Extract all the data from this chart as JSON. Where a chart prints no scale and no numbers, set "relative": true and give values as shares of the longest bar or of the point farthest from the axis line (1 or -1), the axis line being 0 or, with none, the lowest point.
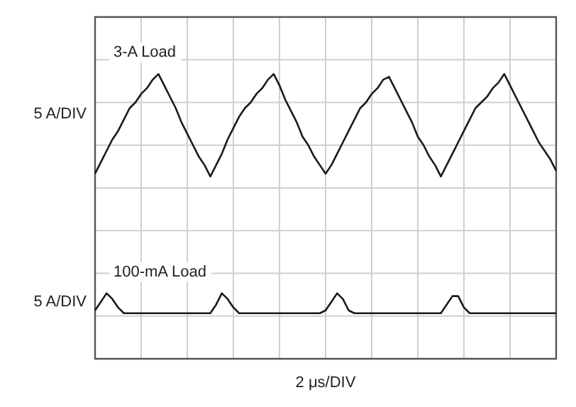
{
  "chart_data": {
    "type": "line",
    "relative": true,
    "xlabel": "2 μs/DIV",
    "annotations": [
      "5 A/DIV",
      "5 A/DIV"
    ],
    "grid": true,
    "legend": false,
    "marker": "none",
    "line_style": "solid",
    "categories": [
      null,
      null,
      null,
      null,
      null,
      null,
      null,
      null,
      null,
      null,
      null,
      null,
      null,
      null,
      null,
      null,
      null,
      null,
      null,
      null,
      null,
      null,
      null,
      null,
      null,
      null,
      null,
      null,
      null,
      null,
      null,
      null,
      null,
      null,
      null,
      null,
      null,
      null,
      null,
      null,
      null,
      null,
      null,
      null,
      null,
      null,
      null,
      null,
      null,
      null,
      null,
      null,
      null,
      null,
      null,
      null,
      null,
      null,
      null,
      null,
      null,
      null,
      null,
      null,
      null,
      null,
      null,
      null,
      null,
      null,
      null,
      null,
      null,
      null,
      null,
      null,
      null,
      null,
      null,
      null,
      null
    ],
    "series": [
      {
        "name": "3-A Load",
        "color": "#1a1a1a",
        "values": [
          0.65,
          0.69,
          0.73,
          0.77,
          0.8,
          0.84,
          0.88,
          0.9,
          0.93,
          0.95,
          0.98,
          1.0,
          0.96,
          0.92,
          0.88,
          0.83,
          0.79,
          0.75,
          0.71,
          0.68,
          0.64,
          0.68,
          0.72,
          0.77,
          0.81,
          0.85,
          0.88,
          0.9,
          0.93,
          0.95,
          0.98,
          1.0,
          0.96,
          0.91,
          0.87,
          0.83,
          0.78,
          0.75,
          0.71,
          0.68,
          0.65,
          0.68,
          0.72,
          0.76,
          0.8,
          0.84,
          0.88,
          0.9,
          0.93,
          0.95,
          0.98,
          0.99,
          0.95,
          0.91,
          0.87,
          0.83,
          0.78,
          0.75,
          0.71,
          0.68,
          0.64,
          0.68,
          0.72,
          0.76,
          0.8,
          0.84,
          0.88,
          0.9,
          0.92,
          0.95,
          0.97,
          1.0,
          0.96,
          0.92,
          0.88,
          0.84,
          0.8,
          0.76,
          0.73,
          0.7,
          0.66
        ]
      },
      {
        "name": "100-mA Load",
        "color": "#1a1a1a",
        "values": [
          0.17,
          0.2,
          0.23,
          0.21,
          0.18,
          0.16,
          0.16,
          0.16,
          0.16,
          0.16,
          0.16,
          0.16,
          0.16,
          0.16,
          0.16,
          0.16,
          0.16,
          0.16,
          0.16,
          0.16,
          0.16,
          0.19,
          0.23,
          0.21,
          0.18,
          0.16,
          0.16,
          0.16,
          0.16,
          0.16,
          0.16,
          0.16,
          0.16,
          0.16,
          0.16,
          0.16,
          0.16,
          0.16,
          0.16,
          0.16,
          0.17,
          0.2,
          0.23,
          0.21,
          0.17,
          0.16,
          0.16,
          0.16,
          0.16,
          0.16,
          0.16,
          0.16,
          0.16,
          0.16,
          0.16,
          0.16,
          0.16,
          0.16,
          0.16,
          0.16,
          0.16,
          0.19,
          0.22,
          0.22,
          0.18,
          0.16,
          0.16,
          0.16,
          0.16,
          0.16,
          0.16,
          0.16,
          0.16,
          0.16,
          0.16,
          0.16,
          0.16,
          0.16,
          0.16,
          0.16,
          0.16
        ]
      }
    ]
  }
}
